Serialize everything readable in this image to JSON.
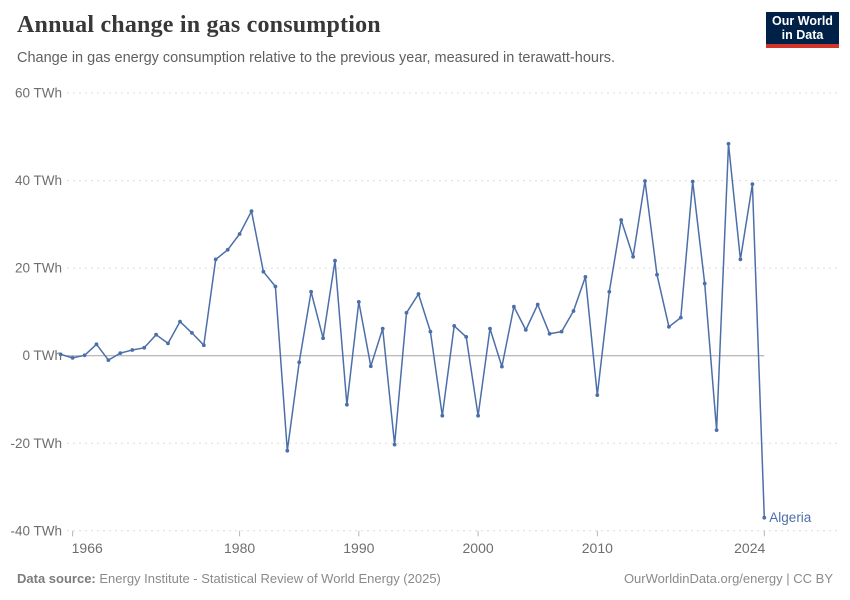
{
  "header": {
    "title": "Annual change in gas consumption",
    "subtitle": "Change in gas energy consumption relative to the previous year, measured in terawatt-hours."
  },
  "logo": {
    "line1": "Our World",
    "line2": "in Data",
    "bg_color": "#002147",
    "accent_color": "#D0362B"
  },
  "footer": {
    "source_label": "Data source:",
    "source_text": " Energy Institute - Statistical Review of World Energy (2025)",
    "right_text": "OurWorldinData.org/energy | CC BY"
  },
  "chart_data": {
    "type": "line",
    "title": "Annual change in gas consumption",
    "entity_label": "Algeria",
    "unit": "TWh",
    "xlim": [
      1965,
      2024
    ],
    "ylim": [
      -40,
      60
    ],
    "grid": "horizontal dashed",
    "legend_position": "end-of-line label",
    "colors": {
      "line": "#4C6FA9",
      "grid": "#DBDBDB",
      "zero_line": "#A3A3A3",
      "tick_text": "#6E6E6E"
    },
    "y_ticks": [
      {
        "value": 60,
        "label": "60 TWh"
      },
      {
        "value": 40,
        "label": "40 TWh"
      },
      {
        "value": 20,
        "label": "20 TWh"
      },
      {
        "value": 0,
        "label": "0 TWh"
      },
      {
        "value": -20,
        "label": "-20 TWh"
      },
      {
        "value": -40,
        "label": "-40 TWh"
      }
    ],
    "x_ticks": [
      {
        "value": 1966,
        "label": "1966"
      },
      {
        "value": 1980,
        "label": "1980"
      },
      {
        "value": 1990,
        "label": "1990"
      },
      {
        "value": 2000,
        "label": "2000"
      },
      {
        "value": 2010,
        "label": "2010"
      },
      {
        "value": 2024,
        "label": "2024"
      }
    ],
    "years": [
      1965,
      1966,
      1967,
      1968,
      1969,
      1970,
      1971,
      1972,
      1973,
      1974,
      1975,
      1976,
      1977,
      1978,
      1979,
      1980,
      1981,
      1982,
      1983,
      1984,
      1985,
      1986,
      1987,
      1988,
      1989,
      1990,
      1991,
      1992,
      1993,
      1994,
      1995,
      1996,
      1997,
      1998,
      1999,
      2000,
      2001,
      2002,
      2003,
      2004,
      2005,
      2006,
      2007,
      2008,
      2009,
      2010,
      2011,
      2012,
      2013,
      2014,
      2015,
      2016,
      2017,
      2018,
      2019,
      2020,
      2021,
      2022,
      2023,
      2024
    ],
    "values": [
      0.3,
      -0.5,
      0.1,
      2.6,
      -1.0,
      0.6,
      1.3,
      1.8,
      4.8,
      2.8,
      7.8,
      5.2,
      2.4,
      22.0,
      24.2,
      27.8,
      33.0,
      19.2,
      15.8,
      -21.7,
      -1.5,
      14.6,
      4.0,
      21.7,
      -11.2,
      12.3,
      -2.4,
      6.2,
      -20.3,
      9.8,
      14.1,
      5.5,
      -13.7,
      6.8,
      4.3,
      -13.7,
      6.2,
      -2.5,
      11.2,
      5.9,
      11.7,
      5.0,
      5.5,
      10.2,
      18.0,
      -9.0,
      14.6,
      31.0,
      22.6,
      39.9,
      18.5,
      6.6,
      8.7,
      39.8,
      16.5,
      -17.0,
      48.4,
      22.0,
      39.2,
      -37.0
    ]
  }
}
